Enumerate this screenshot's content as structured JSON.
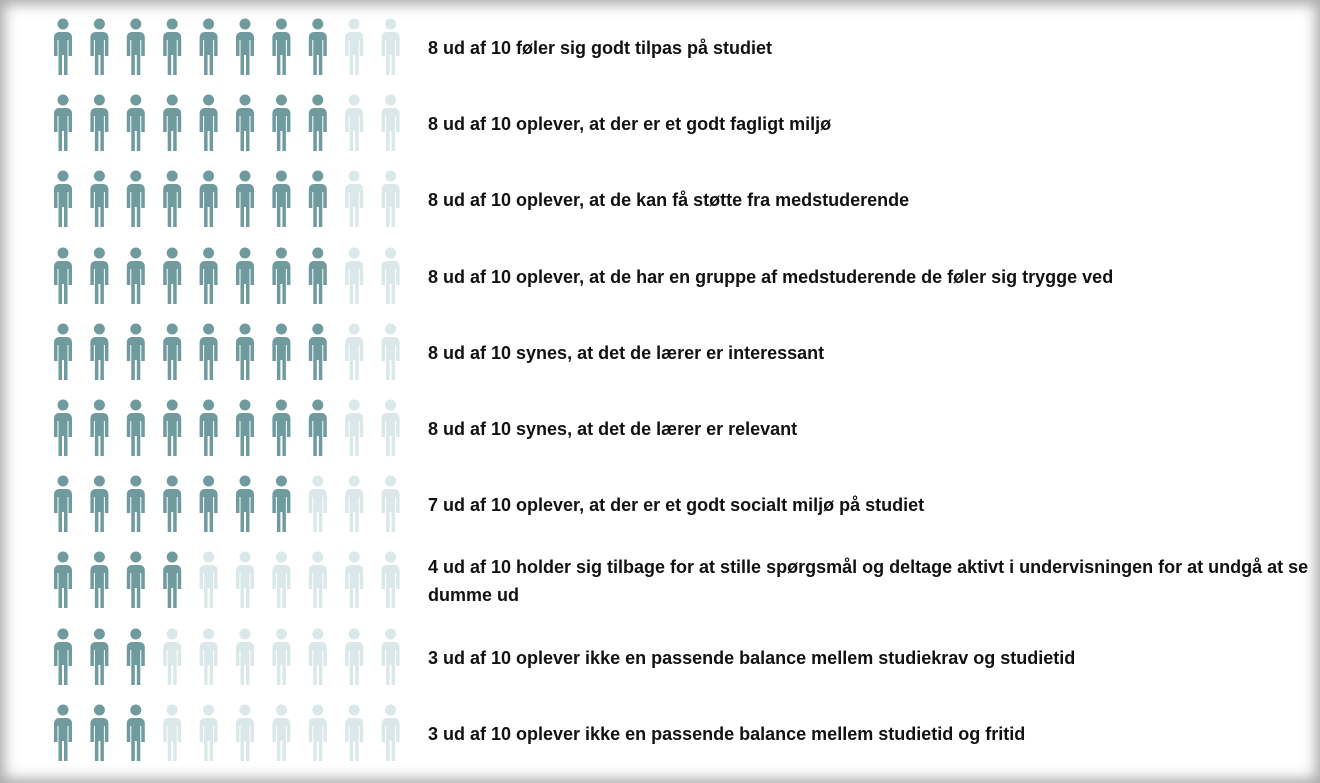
{
  "chart_data": {
    "type": "pictogram",
    "total": 10,
    "categories": [
      "8 ud af 10 føler sig godt tilpas på studiet",
      "8 ud af 10 oplever, at der er et godt fagligt miljø",
      "8 ud af 10 oplever, at de kan få støtte fra medstuderende",
      "8 ud af 10 oplever, at de har en gruppe af medstuderende de føler sig trygge ved",
      "8 ud af 10 synes, at det de lærer er interessant",
      "8 ud af 10 synes, at det de lærer er relevant",
      "7 ud af 10 oplever, at der er et godt socialt miljø på studiet",
      "4 ud af 10 holder sig tilbage for at stille spørgsmål og deltage aktivt i undervisningen for at undgå at se dumme ud",
      "3 ud af 10 oplever ikke en passende balance mellem studiekrav og studietid",
      "3 ud af 10 oplever ikke en passende balance mellem studietid og fritid"
    ],
    "values": [
      8,
      8,
      8,
      8,
      8,
      8,
      7,
      4,
      3,
      3
    ],
    "color": "#6f9a9e",
    "empty_color": "#dbe8e9"
  }
}
